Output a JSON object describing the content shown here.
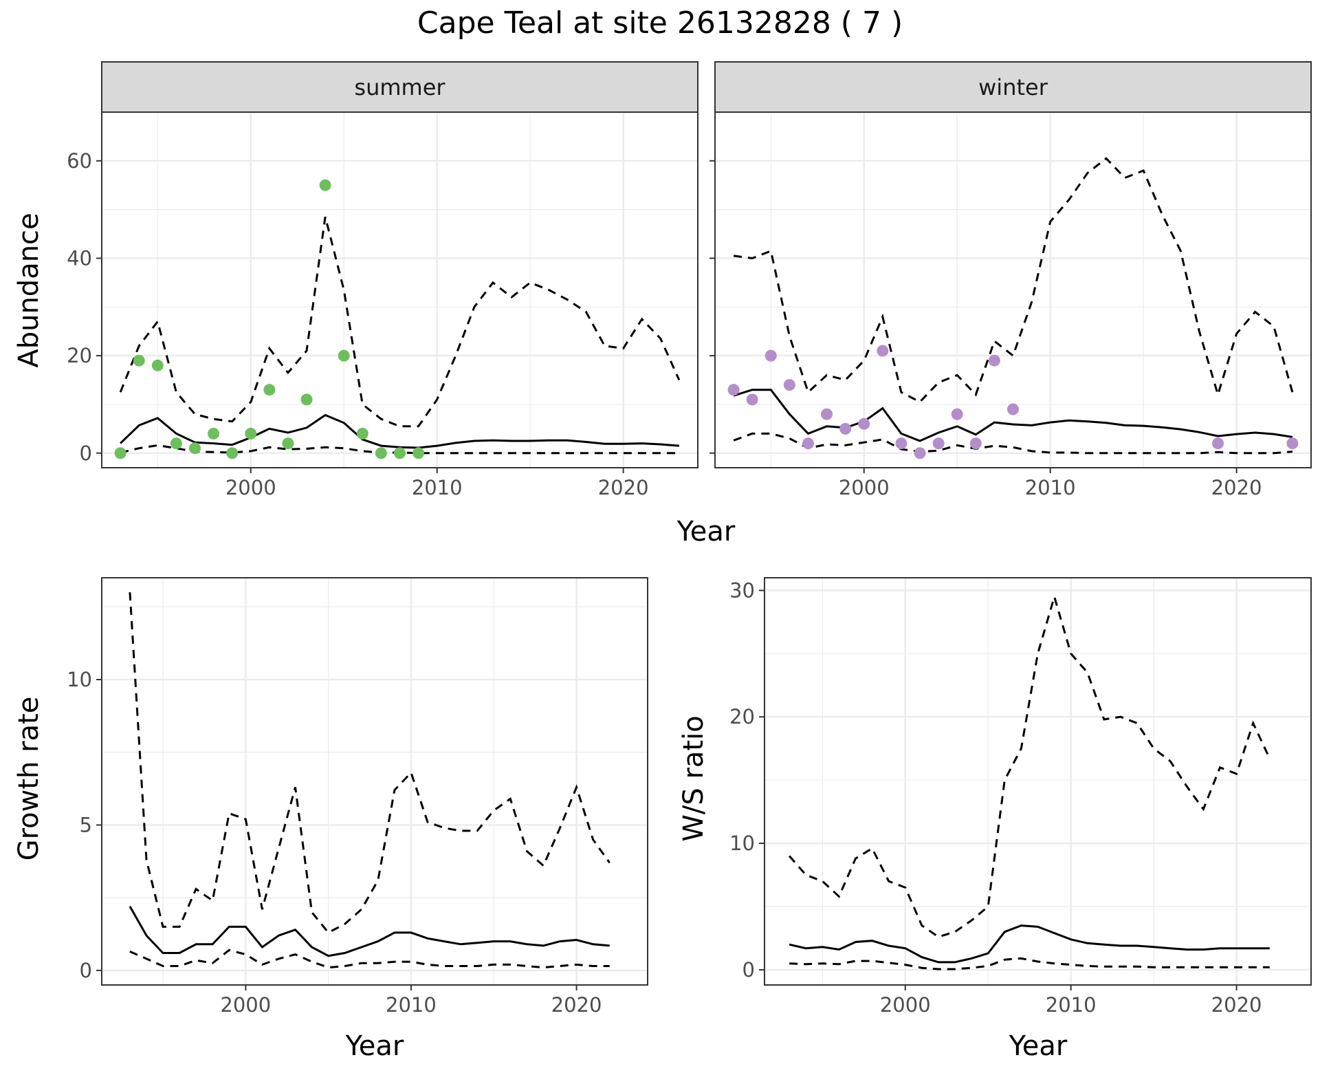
{
  "title": "Cape Teal at site 26132828 ( 7 )",
  "colors": {
    "summer_points": "#6dbf5c",
    "winter_points": "#b48ecb",
    "line": "#000000",
    "strip_fill": "#d9d9d9"
  },
  "chart_data": [
    {
      "type": "line",
      "panel": "summer",
      "strip_label": "summer",
      "xlabel": "Year",
      "ylabel": "Abundance",
      "xlim": [
        1992,
        2024
      ],
      "ylim": [
        -3,
        70
      ],
      "xticks": [
        2000,
        2010,
        2020
      ],
      "yticks": [
        0,
        20,
        40,
        60
      ],
      "grid": true,
      "estimate": {
        "x": [
          1993,
          1994,
          1995,
          1996,
          1997,
          1998,
          1999,
          2000,
          2001,
          2002,
          2003,
          2004,
          2005,
          2006,
          2007,
          2008,
          2009,
          2010,
          2011,
          2012,
          2013,
          2014,
          2015,
          2016,
          2017,
          2018,
          2019,
          2020,
          2021,
          2022,
          2023
        ],
        "y": [
          2,
          5.7,
          7.2,
          4,
          2.2,
          2,
          1.7,
          3.2,
          5,
          4.2,
          5.2,
          7.8,
          6.2,
          2.8,
          1.5,
          1.2,
          1.1,
          1.5,
          2.1,
          2.5,
          2.6,
          2.5,
          2.5,
          2.6,
          2.6,
          2.3,
          1.9,
          1.9,
          2,
          1.8,
          1.5
        ]
      },
      "upper": {
        "x": [
          1993,
          1994,
          1995,
          1996,
          1997,
          1998,
          1999,
          2000,
          2001,
          2002,
          2003,
          2004,
          2005,
          2006,
          2007,
          2008,
          2009,
          2010,
          2011,
          2012,
          2013,
          2014,
          2015,
          2016,
          2017,
          2018,
          2019,
          2020,
          2021,
          2022,
          2023
        ],
        "y": [
          12.5,
          22,
          27,
          12.5,
          8,
          7,
          6.5,
          10.5,
          21.5,
          16.5,
          21,
          48.5,
          33.5,
          10,
          7,
          5.5,
          5.5,
          11,
          20,
          30,
          35,
          32,
          35,
          33.5,
          31.5,
          29,
          22,
          21.5,
          27.5,
          23.5,
          15
        ]
      },
      "lower": {
        "x": [
          1993,
          1994,
          1995,
          1996,
          1997,
          1998,
          1999,
          2000,
          2001,
          2002,
          2003,
          2004,
          2005,
          2006,
          2007,
          2008,
          2009,
          2010,
          2011,
          2012,
          2013,
          2014,
          2015,
          2016,
          2017,
          2018,
          2019,
          2020,
          2021,
          2022,
          2023
        ],
        "y": [
          0.1,
          1,
          1.6,
          1,
          0.3,
          0.2,
          0.1,
          0.4,
          1.2,
          0.8,
          0.9,
          1.2,
          1,
          0.4,
          0.1,
          0.1,
          0,
          0,
          0,
          0,
          0,
          0,
          0,
          0,
          0,
          0,
          0,
          0,
          0,
          0,
          0
        ]
      },
      "observations": {
        "x": [
          1993,
          1994,
          1995,
          1996,
          1997,
          1998,
          1999,
          2000,
          2001,
          2002,
          2003,
          2004,
          2005,
          2006,
          2007,
          2008,
          2009
        ],
        "y": [
          0,
          19,
          18,
          2,
          1,
          4,
          0,
          4,
          13,
          2,
          11,
          55,
          20,
          4,
          0,
          0,
          0
        ]
      }
    },
    {
      "type": "line",
      "panel": "winter",
      "strip_label": "winter",
      "xlabel": "Year",
      "ylabel": "Abundance",
      "xlim": [
        1992,
        2024
      ],
      "ylim": [
        -3,
        70
      ],
      "xticks": [
        2000,
        2010,
        2020
      ],
      "yticks": [
        0,
        20,
        40,
        60
      ],
      "grid": true,
      "estimate": {
        "x": [
          1993,
          1994,
          1995,
          1996,
          1997,
          1998,
          1999,
          2000,
          2001,
          2002,
          2003,
          2004,
          2005,
          2006,
          2007,
          2008,
          2009,
          2010,
          2011,
          2012,
          2013,
          2014,
          2015,
          2016,
          2017,
          2018,
          2019,
          2020,
          2021,
          2022,
          2023
        ],
        "y": [
          11.8,
          13,
          13,
          8,
          4,
          5.5,
          5.2,
          6.5,
          9.2,
          4,
          2.5,
          4.2,
          5.5,
          3.8,
          6.3,
          5.9,
          5.7,
          6.3,
          6.7,
          6.5,
          6.2,
          5.7,
          5.6,
          5.3,
          4.9,
          4.3,
          3.5,
          3.9,
          4.2,
          3.9,
          3.3
        ]
      },
      "upper": {
        "x": [
          1993,
          1994,
          1995,
          1996,
          1997,
          1998,
          1999,
          2000,
          2001,
          2002,
          2003,
          2004,
          2005,
          2006,
          2007,
          2008,
          2009,
          2010,
          2011,
          2012,
          2013,
          2014,
          2015,
          2016,
          2017,
          2018,
          2019,
          2020,
          2021,
          2022,
          2023
        ],
        "y": [
          40.5,
          40,
          41.5,
          24,
          12.5,
          16,
          15,
          19,
          28,
          12.5,
          10.5,
          14.5,
          16,
          12,
          23,
          20,
          31,
          47.5,
          52,
          57.5,
          60.5,
          56.5,
          58,
          49,
          41.5,
          25,
          12,
          24.5,
          29,
          26,
          12.5
        ]
      },
      "lower": {
        "x": [
          1993,
          1994,
          1995,
          1996,
          1997,
          1998,
          1999,
          2000,
          2001,
          2002,
          2003,
          2004,
          2005,
          2006,
          2007,
          2008,
          2009,
          2010,
          2011,
          2012,
          2013,
          2014,
          2015,
          2016,
          2017,
          2018,
          2019,
          2020,
          2021,
          2022,
          2023
        ],
        "y": [
          2.6,
          4,
          4,
          3,
          1,
          1.8,
          1.6,
          2.2,
          2.8,
          0.8,
          0.3,
          0.5,
          1.6,
          0.9,
          1.5,
          1.2,
          0.4,
          0.1,
          0.1,
          0,
          0,
          0,
          0,
          0,
          0,
          0,
          0.2,
          0,
          0,
          0,
          0.3
        ]
      },
      "observations": {
        "x": [
          1993,
          1994,
          1995,
          1996,
          1997,
          1998,
          1999,
          2000,
          2001,
          2002,
          2003,
          2004,
          2005,
          2006,
          2007,
          2008,
          2019,
          2023
        ],
        "y": [
          13,
          11,
          20,
          14,
          2,
          8,
          5,
          6,
          21,
          2,
          0,
          2,
          8,
          2,
          19,
          9,
          2,
          2
        ]
      }
    },
    {
      "type": "line",
      "panel": "growth",
      "xlabel": "Year",
      "ylabel": "Growth rate",
      "xlim": [
        1991.3,
        2024.3
      ],
      "ylim": [
        -0.5,
        13.5
      ],
      "xticks": [
        2000,
        2010,
        2020
      ],
      "yticks": [
        0,
        5,
        10
      ],
      "grid": true,
      "estimate": {
        "x": [
          1993,
          1994,
          1995,
          1996,
          1997,
          1998,
          1999,
          2000,
          2001,
          2002,
          2003,
          2004,
          2005,
          2006,
          2007,
          2008,
          2009,
          2010,
          2011,
          2012,
          2013,
          2014,
          2015,
          2016,
          2017,
          2018,
          2019,
          2020,
          2021,
          2022
        ],
        "y": [
          2.2,
          1.2,
          0.6,
          0.6,
          0.9,
          0.9,
          1.5,
          1.5,
          0.8,
          1.2,
          1.4,
          0.8,
          0.5,
          0.6,
          0.8,
          1,
          1.3,
          1.3,
          1.1,
          1,
          0.9,
          0.95,
          1,
          1,
          0.9,
          0.85,
          1,
          1.05,
          0.9,
          0.85
        ]
      },
      "upper": {
        "x": [
          1993,
          1994,
          1995,
          1996,
          1997,
          1998,
          1999,
          2000,
          2001,
          2002,
          2003,
          2004,
          2005,
          2006,
          2007,
          2008,
          2009,
          2010,
          2011,
          2012,
          2013,
          2014,
          2015,
          2016,
          2017,
          2018,
          2019,
          2020,
          2021,
          2022
        ],
        "y": [
          13,
          3.8,
          1.5,
          1.5,
          2.8,
          2.4,
          5.4,
          5.2,
          2.1,
          4.2,
          6.3,
          2,
          1.3,
          1.6,
          2.1,
          3.1,
          6.2,
          6.8,
          5.1,
          4.9,
          4.8,
          4.8,
          5.5,
          5.9,
          4.1,
          3.6,
          4.9,
          6.3,
          4.5,
          3.7
        ]
      },
      "lower": {
        "x": [
          1993,
          1994,
          1995,
          1996,
          1997,
          1998,
          1999,
          2000,
          2001,
          2002,
          2003,
          2004,
          2005,
          2006,
          2007,
          2008,
          2009,
          2010,
          2011,
          2012,
          2013,
          2014,
          2015,
          2016,
          2017,
          2018,
          2019,
          2020,
          2021,
          2022
        ],
        "y": [
          0.65,
          0.4,
          0.15,
          0.15,
          0.35,
          0.25,
          0.7,
          0.55,
          0.2,
          0.4,
          0.55,
          0.3,
          0.1,
          0.15,
          0.25,
          0.25,
          0.3,
          0.3,
          0.2,
          0.15,
          0.15,
          0.15,
          0.2,
          0.2,
          0.15,
          0.1,
          0.15,
          0.2,
          0.15,
          0.15
        ]
      }
    },
    {
      "type": "line",
      "panel": "ratio",
      "xlabel": "Year",
      "ylabel": "W/S ratio",
      "xlim": [
        1991.5,
        2024.5
      ],
      "ylim": [
        -1.2,
        31
      ],
      "xticks": [
        2000,
        2010,
        2020
      ],
      "yticks": [
        0,
        10,
        20,
        30
      ],
      "grid": true,
      "estimate": {
        "x": [
          1993,
          1994,
          1995,
          1996,
          1997,
          1998,
          1999,
          2000,
          2001,
          2002,
          2003,
          2004,
          2005,
          2006,
          2007,
          2008,
          2009,
          2010,
          2011,
          2012,
          2013,
          2014,
          2015,
          2016,
          2017,
          2018,
          2019,
          2020,
          2021,
          2022
        ],
        "y": [
          2,
          1.7,
          1.8,
          1.6,
          2.2,
          2.3,
          1.9,
          1.7,
          1,
          0.6,
          0.6,
          0.9,
          1.3,
          3,
          3.5,
          3.4,
          2.9,
          2.4,
          2.1,
          2,
          1.9,
          1.9,
          1.8,
          1.7,
          1.6,
          1.6,
          1.7,
          1.7,
          1.7,
          1.7
        ]
      },
      "upper": {
        "x": [
          1993,
          1994,
          1995,
          1996,
          1997,
          1998,
          1999,
          2000,
          2001,
          2002,
          2003,
          2004,
          2005,
          2006,
          2007,
          2008,
          2009,
          2010,
          2011,
          2012,
          2013,
          2014,
          2015,
          2016,
          2017,
          2018,
          2019,
          2020,
          2021,
          2022
        ],
        "y": [
          9,
          7.5,
          7,
          5.8,
          8.8,
          9.6,
          7,
          6.5,
          3.5,
          2.6,
          3,
          3.9,
          5,
          15,
          17.5,
          25,
          29.5,
          25,
          23.5,
          19.8,
          20,
          19.5,
          17.5,
          16.5,
          14.5,
          12.7,
          16,
          15.5,
          19.5,
          16.7
        ]
      },
      "lower": {
        "x": [
          1993,
          1994,
          1995,
          1996,
          1997,
          1998,
          1999,
          2000,
          2001,
          2002,
          2003,
          2004,
          2005,
          2006,
          2007,
          2008,
          2009,
          2010,
          2011,
          2012,
          2013,
          2014,
          2015,
          2016,
          2017,
          2018,
          2019,
          2020,
          2021,
          2022
        ],
        "y": [
          0.5,
          0.45,
          0.5,
          0.45,
          0.7,
          0.7,
          0.55,
          0.4,
          0.15,
          0.05,
          0.05,
          0.15,
          0.3,
          0.8,
          0.9,
          0.65,
          0.5,
          0.4,
          0.3,
          0.25,
          0.25,
          0.25,
          0.2,
          0.2,
          0.2,
          0.2,
          0.2,
          0.2,
          0.2,
          0.2
        ]
      }
    }
  ]
}
